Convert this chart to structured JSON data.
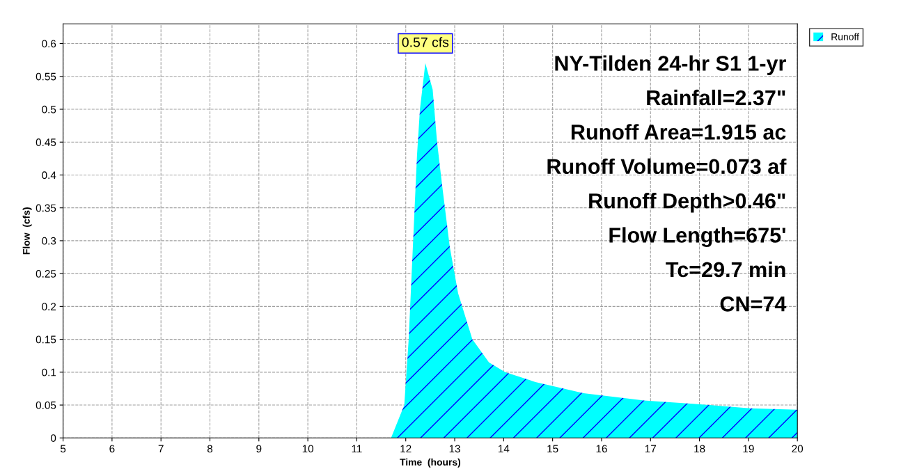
{
  "chart_data": {
    "type": "area",
    "xlabel": "Time  (hours)",
    "ylabel": "Flow  (cfs)",
    "x": [
      5,
      11.7,
      11.97,
      12.06,
      12.23,
      12.29,
      12.4,
      12.55,
      12.64,
      12.75,
      12.9,
      13.07,
      13.36,
      13.7,
      14.03,
      14.65,
      15.63,
      16.87,
      17.87,
      19.03,
      20
    ],
    "series": [
      {
        "name": "Runoff",
        "color": "#00ffff",
        "values": [
          0,
          0,
          0.05,
          0.15,
          0.43,
          0.5,
          0.57,
          0.53,
          0.45,
          0.38,
          0.29,
          0.22,
          0.15,
          0.115,
          0.1,
          0.085,
          0.068,
          0.057,
          0.052,
          0.045,
          0.043
        ]
      }
    ],
    "xlim": [
      5,
      20
    ],
    "xticks": [
      5,
      6,
      7,
      8,
      9,
      10,
      11,
      12,
      13,
      14,
      15,
      16,
      17,
      18,
      19,
      20
    ],
    "ylim": [
      0,
      0.63
    ],
    "yticks": [
      0,
      0.05,
      0.1,
      0.15,
      0.2,
      0.25,
      0.3,
      0.35,
      0.4,
      0.45,
      0.5,
      0.55,
      0.6
    ],
    "annotations": [
      {
        "text": "0.57 cfs",
        "x": 12.4,
        "y": 0.57
      },
      "NY-Tilden 24-hr S1 1-yr",
      "Rainfall=2.37\"",
      "Runoff Area=1.915 ac",
      "Runoff Volume=0.073 af",
      "Runoff Depth>0.46\"",
      "Flow Length=675'",
      "Tc=29.7 min",
      "CN=74"
    ],
    "grid": true,
    "legend": "top right"
  }
}
